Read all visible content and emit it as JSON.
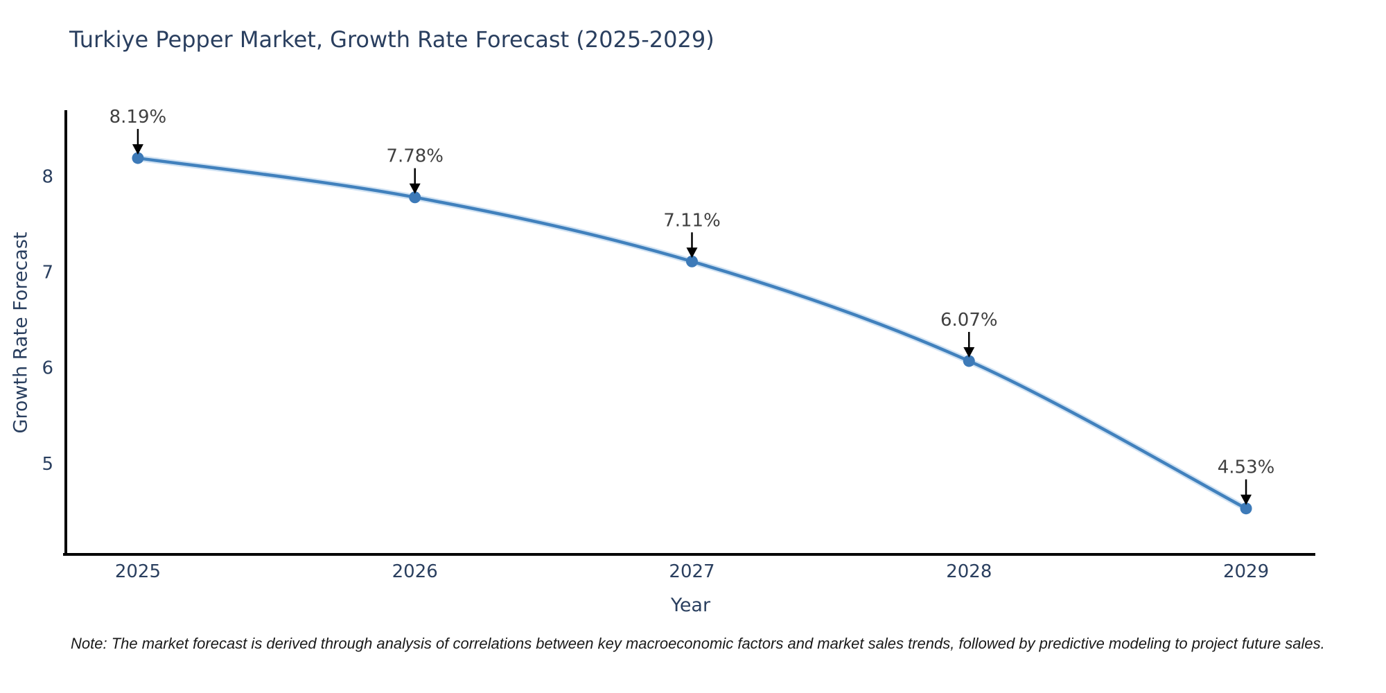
{
  "title": "Turkiye Pepper Market, Growth Rate Forecast (2025-2029)",
  "note": "Note: The market forecast is derived through analysis of correlations between key macroeconomic factors and market sales trends, followed by predictive modeling to project future sales.",
  "colors": {
    "background": "#ffffff",
    "title": "#2a3f5f",
    "tick_label": "#2a3f5f",
    "axis_line": "#000000",
    "line": "#4181bd",
    "line_halo": "#a9cbe9",
    "marker": "#3d7ab8",
    "annotation_text": "#404040",
    "annotation_arrow": "#000000",
    "note_text": "#1a1a1a"
  },
  "chart_data": {
    "type": "line",
    "title": "Turkiye Pepper Market, Growth Rate Forecast (2025-2029)",
    "xlabel": "Year",
    "ylabel": "Growth Rate Forecast",
    "x": [
      2025,
      2026,
      2027,
      2028,
      2029
    ],
    "values": [
      8.19,
      7.78,
      7.11,
      6.07,
      4.53
    ],
    "point_labels": [
      "8.19%",
      "7.78%",
      "7.11%",
      "6.07%",
      "4.53%"
    ],
    "x_tick_labels": [
      "2025",
      "2026",
      "2027",
      "2028",
      "2029"
    ],
    "y_ticks": [
      5,
      6,
      7,
      8
    ],
    "xlim": [
      2024.74,
      2029.25
    ],
    "ylim": [
      4.05,
      8.69
    ],
    "grid": false,
    "legend": false,
    "line_shape": "spline",
    "annotations": "value above each point with downward arrow"
  }
}
